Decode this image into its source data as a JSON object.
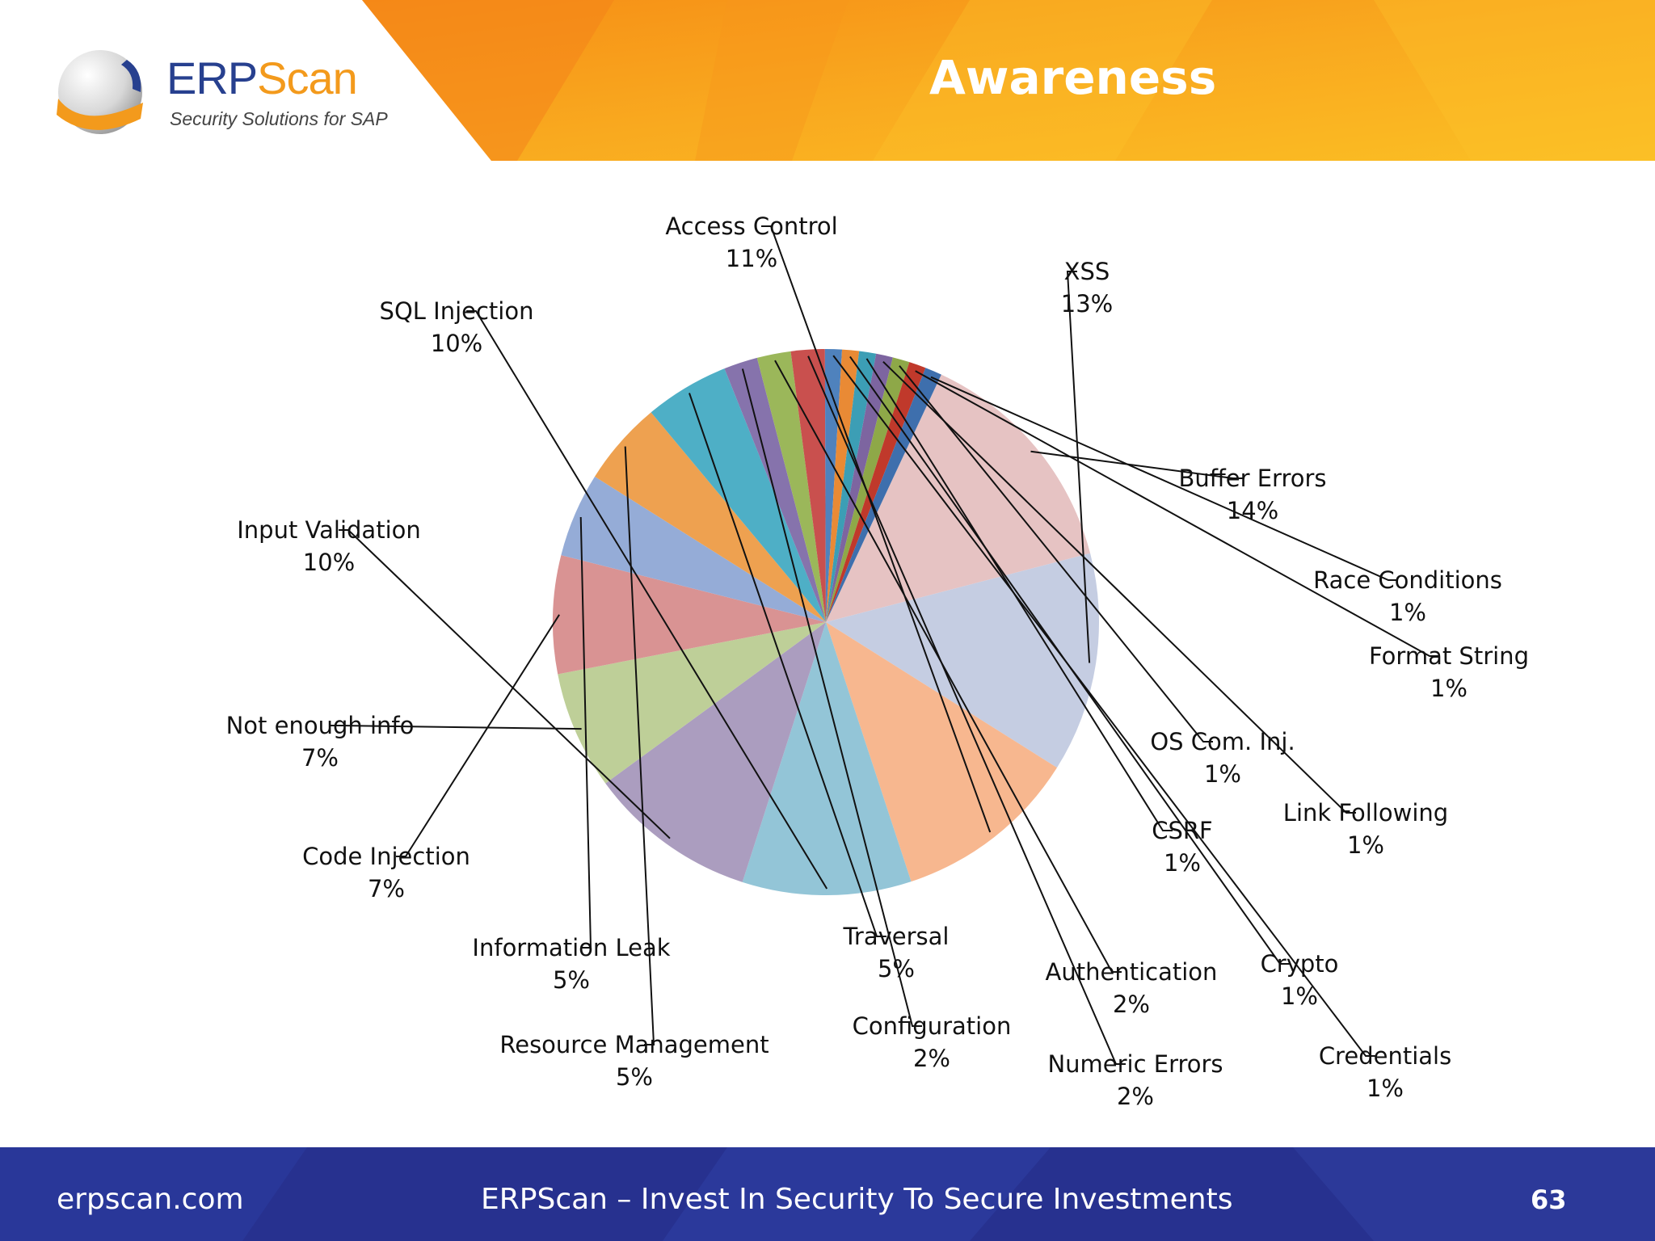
{
  "slide": {
    "title": "Awareness",
    "brand": {
      "name_part1": "ERP",
      "name_part2": "Scan",
      "tagline": "Security Solutions for SAP"
    },
    "footer": {
      "site": "erpscan.com",
      "slogan": "ERPScan – Invest In Security To Secure Investments",
      "page": "63"
    }
  },
  "colors": {
    "header_orange": "#f7a31c",
    "header_orange_light": "#fbc42a",
    "footer_blue": "#27318f",
    "brand_blue": "#27408f",
    "brand_orange": "#f39a1c"
  },
  "chart_data": {
    "type": "pie",
    "title": "",
    "start_angle_deg": 65,
    "slices": [
      {
        "label": "Buffer Errors",
        "value": 14,
        "display": "14%",
        "color": "#e6c3c3"
      },
      {
        "label": "XSS",
        "value": 13,
        "display": "13%",
        "color": "#c5cde2"
      },
      {
        "label": "Access Control",
        "value": 11,
        "display": "11%",
        "color": "#f7b78f"
      },
      {
        "label": "SQL Injection",
        "value": 10,
        "display": "10%",
        "color": "#93c5d7"
      },
      {
        "label": "Input Validation",
        "value": 10,
        "display": "10%",
        "color": "#ab9dbf"
      },
      {
        "label": "Not enough info",
        "value": 7,
        "display": "7%",
        "color": "#becf98"
      },
      {
        "label": "Code Injection",
        "value": 7,
        "display": "7%",
        "color": "#d99393"
      },
      {
        "label": "Information Leak",
        "value": 5,
        "display": "5%",
        "color": "#95acd7"
      },
      {
        "label": "Resource Management",
        "value": 5,
        "display": "5%",
        "color": "#eea150"
      },
      {
        "label": "Traversal",
        "value": 5,
        "display": "5%",
        "color": "#4eafc6"
      },
      {
        "label": "Configuration",
        "value": 2,
        "display": "2%",
        "color": "#8673ac"
      },
      {
        "label": "Authentication",
        "value": 2,
        "display": "2%",
        "color": "#9bb75a"
      },
      {
        "label": "Numeric Errors",
        "value": 2,
        "display": "2%",
        "color": "#c9504e"
      },
      {
        "label": "Credentials",
        "value": 1,
        "display": "1%",
        "color": "#4f82bd"
      },
      {
        "label": "Crypto",
        "value": 1,
        "display": "1%",
        "color": "#e98a35"
      },
      {
        "label": "CSRF",
        "value": 1,
        "display": "1%",
        "color": "#3c9eb5"
      },
      {
        "label": "Link Following",
        "value": 1,
        "display": "1%",
        "color": "#7d65a0"
      },
      {
        "label": "OS Com. Inj.",
        "value": 1,
        "display": "1%",
        "color": "#8ea848"
      },
      {
        "label": "Format String",
        "value": 1,
        "display": "1%",
        "color": "#c0392b"
      },
      {
        "label": "Race Conditions",
        "value": 1,
        "display": "1%",
        "color": "#3e6fad"
      }
    ]
  }
}
